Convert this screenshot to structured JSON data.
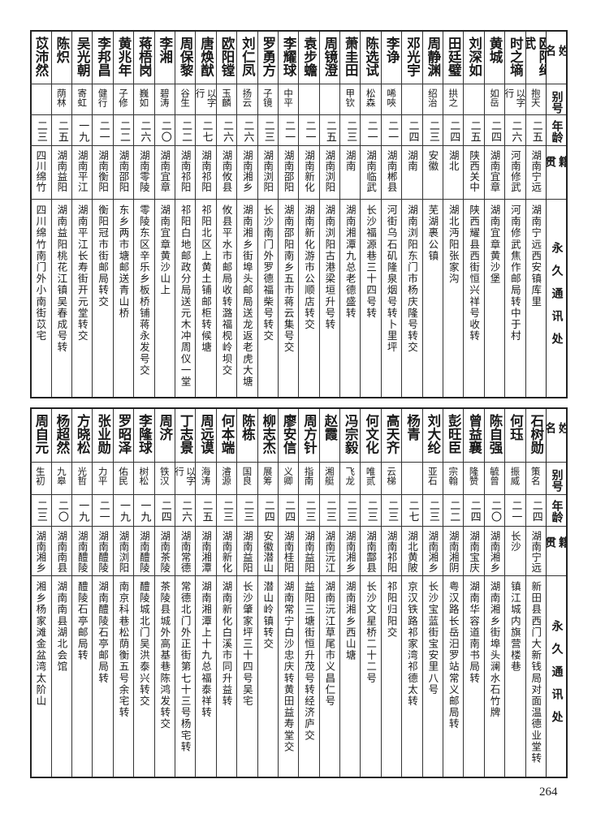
{
  "headers": {
    "name": "姓名",
    "alias": "别号",
    "age": "年龄",
    "origin": "籍贯",
    "address": "永久通讯处"
  },
  "top_table": [
    {
      "name": "欧阳绳武",
      "alias": "抱天",
      "age": "二五",
      "origin": "湖南宁远",
      "address": "湖南宁远西安镇库里"
    },
    {
      "name": "时之墒",
      "alias": "以字行",
      "age": "二六",
      "origin": "河南修武",
      "address": "河南修武焦作邮局转中于村"
    },
    {
      "name": "黄城",
      "alias": "如岳",
      "age": "二四",
      "origin": "湖南宜章",
      "address": "湖南宜章黄沙堡"
    },
    {
      "name": "刘深如",
      "alias": "",
      "age": "二五",
      "origin": "陕西关中",
      "address": "陕西耀县西街恒兴祥号收转"
    },
    {
      "name": "田廷璧",
      "alias": "拱之",
      "age": "二四",
      "origin": "湖北",
      "address": "湖北沔阳张家沟"
    },
    {
      "name": "周静渊",
      "alias": "绍治",
      "age": "二三",
      "origin": "安徽",
      "address": "芜湖裹公镇"
    },
    {
      "name": "邓光宇",
      "alias": "",
      "age": "二四",
      "origin": "湖南",
      "address": "湖南浏阳东门市杨庆隆号转交"
    },
    {
      "name": "李诤",
      "alias": "唏唊",
      "age": "二一",
      "origin": "湖南郴县",
      "address": "河街乌石矶隆泉烟号转卜里坪"
    },
    {
      "name": "陈选试",
      "alias": "松森",
      "age": "二一",
      "origin": "湖南临武",
      "address": "长沙福源巷三十四号转"
    },
    {
      "name": "萧圭田",
      "alias": "甲钦",
      "age": "二三",
      "origin": "湖南",
      "address": "湖南湘潭九总老德盛转"
    },
    {
      "name": "周镜澄",
      "alias": "",
      "age": "二五",
      "origin": "湖南浏阳",
      "address": "湖南浏阳古港梁垣升号转"
    },
    {
      "name": "袁步蟾",
      "alias": "",
      "age": "二一",
      "origin": "湖南新化",
      "address": "湖南新化游市公顺店转交"
    },
    {
      "name": "李耀球",
      "alias": "中平",
      "age": "二一",
      "origin": "湖南邵阳",
      "address": "湖南邵阳南乡五市蒋云集号交"
    },
    {
      "name": "罗勇方",
      "alias": "子镜",
      "age": "二三",
      "origin": "湖南浏阳",
      "address": "长沙南门外罗德福柴号转交"
    },
    {
      "name": "刘仁凤",
      "alias": "扬云",
      "age": "二六",
      "origin": "湖南湘乡",
      "address": "湖南湘乡街埠头邮局送龙返老虎大塘"
    },
    {
      "name": "欧阳镗",
      "alias": "玉麟",
      "age": "二六",
      "origin": "湖南攸县",
      "address": "攸县平水市邮局收转潞福枧岭坝交"
    },
    {
      "name": "唐焕猷",
      "alias": "以字行",
      "age": "二七",
      "origin": "湖南祁阳",
      "address": "祁阳北区上黄土铺邮柜转候塘"
    },
    {
      "name": "周保黎",
      "alias": "谷生",
      "age": "二二",
      "origin": "湖南祁阳",
      "address": "祁阳白地邮政分局送元木冲周仪一堂"
    },
    {
      "name": "李湘",
      "alias": "碧涛",
      "age": "二〇",
      "origin": "湖南宜章",
      "address": "湖南宜章黄沙山上"
    },
    {
      "name": "蒋梧岗",
      "alias": "巍如",
      "age": "二六",
      "origin": "湖南零陵",
      "address": "零陵东区辛乐乡板桥铺蒋永发号交"
    },
    {
      "name": "黄兆年",
      "alias": "子修",
      "age": "二二",
      "origin": "湖南邵阳",
      "address": "东乡两市塘邮送青山桥"
    },
    {
      "name": "李邦昌",
      "alias": "健行",
      "age": "二一",
      "origin": "湖南衡阳",
      "address": "衡阳冠市街邮局转交"
    },
    {
      "name": "吴光朝",
      "alias": "寄虹",
      "age": "一九",
      "origin": "湖南平江",
      "address": "湖南平江长寿街开元堂转交"
    },
    {
      "name": "陈炽",
      "alias": "荫林",
      "age": "二五",
      "origin": "湖南益阳",
      "address": "湖南益阳桃花江镇吴春成号转"
    },
    {
      "name": "苡沛然",
      "alias": "",
      "age": "二三",
      "origin": "四川绵竹",
      "address": "四川绵竹南门外小南街苡宅"
    }
  ],
  "bottom_table": [
    {
      "name": "石树勋",
      "alias": "策名",
      "age": "二四",
      "origin": "湖南宁远",
      "address": "新田县西门大新钱局对面温德业堂转"
    },
    {
      "name": "何珏",
      "alias": "振威",
      "age": "二一",
      "origin": "长沙",
      "address": "镇江城内旗营楼巷"
    },
    {
      "name": "陈自强",
      "alias": "毓曾",
      "age": "二〇",
      "origin": "湖南湘乡",
      "address": "湖南湘乡街埠头澜水石竹牌"
    },
    {
      "name": "曾益襄",
      "alias": "隆赞",
      "age": "二四",
      "origin": "湖南宝庆",
      "address": "湖南华容道南书局转"
    },
    {
      "name": "彭旺臣",
      "alias": "宗翰",
      "age": "二二",
      "origin": "湖南湘阴",
      "address": "粤汉路长岳汨罗站常义邮局转"
    },
    {
      "name": "刘大纶",
      "alias": "亚石",
      "age": "二三",
      "origin": "湖南湘乡",
      "address": "长沙宝蓝街宝安里八号"
    },
    {
      "name": "杨青",
      "alias": "",
      "age": "二七",
      "origin": "湖北黄陂",
      "address": "京汉铁路祁家湾祁德太转"
    },
    {
      "name": "高天齐",
      "alias": "云梯",
      "age": "二三",
      "origin": "湖南祁阳",
      "address": "祁阳归阳交"
    },
    {
      "name": "何文化",
      "alias": "唯贰",
      "age": "二三",
      "origin": "湖南酃县",
      "address": "长沙文星桥二十二号"
    },
    {
      "name": "冯宗毅",
      "alias": "飞龙",
      "age": "二三",
      "origin": "湖南湘乡",
      "address": "湖南湘乡西山塘"
    },
    {
      "name": "赵霞",
      "alias": "湘艇",
      "age": "二三",
      "origin": "湖南沅江",
      "address": "湖南沅江草尾市义昌仁号"
    },
    {
      "name": "周方针",
      "alias": "指南",
      "age": "二三",
      "origin": "湖南益阳",
      "address": "益阳三塘街恒升茂号转经济庐交"
    },
    {
      "name": "廖安信",
      "alias": "义卿",
      "age": "二四",
      "origin": "湖南桂阳",
      "address": "湖南常宁白沙忠庆转黄田益寿堂交"
    },
    {
      "name": "柳志杰",
      "alias": "展筹",
      "age": "二四",
      "origin": "安徽潜山",
      "address": "潜山岭镇转交"
    },
    {
      "name": "陈栋",
      "alias": "国良",
      "age": "二三",
      "origin": "湖南益阳",
      "address": "长沙肇家坪三十四号吴宅"
    },
    {
      "name": "何本端",
      "alias": "濬源",
      "age": "二三",
      "origin": "湖南新化",
      "address": "湖南新化白溪市同升益转"
    },
    {
      "name": "周远谟",
      "alias": "海涛",
      "age": "二五",
      "origin": "湖南湘潭",
      "address": "湖南湘潭上十九总福泰祥转"
    },
    {
      "name": "丁志景",
      "alias": "以字行",
      "age": "二六",
      "origin": "湖南常德",
      "address": "常德北门外正街第七十三号杨宅转"
    },
    {
      "name": "周济",
      "alias": "铁汉",
      "age": "二四",
      "origin": "湖南茶陵",
      "address": "茶陵县城外高基巷陈鸿发转交"
    },
    {
      "name": "李隆球",
      "alias": "树松",
      "age": "一九",
      "origin": "湖南醴陵",
      "address": "醴陵城北门吴洪泰兴转交"
    },
    {
      "name": "罗昭泽",
      "alias": "佑民",
      "age": "一九",
      "origin": "湖南浏阳",
      "address": "南京科巷松荫衡五号余宅转"
    },
    {
      "name": "张业勋",
      "alias": "力平",
      "age": "二一",
      "origin": "湖南醴陵",
      "address": "湖南醴陵石亭邮局转"
    },
    {
      "name": "方晓松",
      "alias": "光哲",
      "age": "一九",
      "origin": "湖南醴陵",
      "address": "醴陵石亭邮局转"
    },
    {
      "name": "杨超然",
      "alias": "九皋",
      "age": "二〇",
      "origin": "湖南南县",
      "address": "湖南南县湖北会馆"
    },
    {
      "name": "周自元",
      "alias": "生初",
      "age": "二三",
      "origin": "湖南湘乡",
      "address": "湘乡杨家滩金盆湾太阶山"
    }
  ],
  "page_number": "264"
}
